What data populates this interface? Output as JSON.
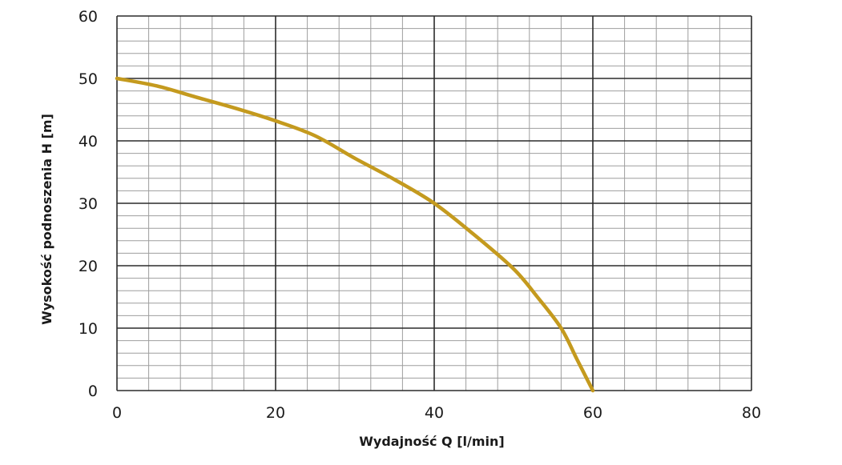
{
  "chart_data": {
    "type": "line",
    "title": "",
    "xlabel": "Wydajność Q [l/min]",
    "ylabel": "Wysokość podnoszenia H [m]",
    "xlim": [
      0,
      80
    ],
    "ylim": [
      0,
      60
    ],
    "x_ticks": [
      0,
      20,
      40,
      60,
      80
    ],
    "y_ticks": [
      0,
      10,
      20,
      30,
      40,
      50,
      60
    ],
    "x_tick_labels": [
      "0",
      "20",
      "40",
      "60",
      "80"
    ],
    "y_tick_labels": [
      "0",
      "10",
      "20",
      "30",
      "40",
      "50",
      "60"
    ],
    "x_minor_step": 4,
    "y_minor_step": 2,
    "grid": true,
    "legend": "none",
    "series": [
      {
        "color": "#c49a1e",
        "x": [
          0,
          5,
          10,
          15,
          20,
          25,
          30,
          35,
          40,
          45,
          50,
          53,
          56,
          58,
          60
        ],
        "y": [
          50,
          48.8,
          47,
          45.2,
          43.2,
          40.8,
          37.2,
          33.8,
          30,
          25,
          19.5,
          15,
          10,
          5,
          0
        ]
      }
    ]
  }
}
